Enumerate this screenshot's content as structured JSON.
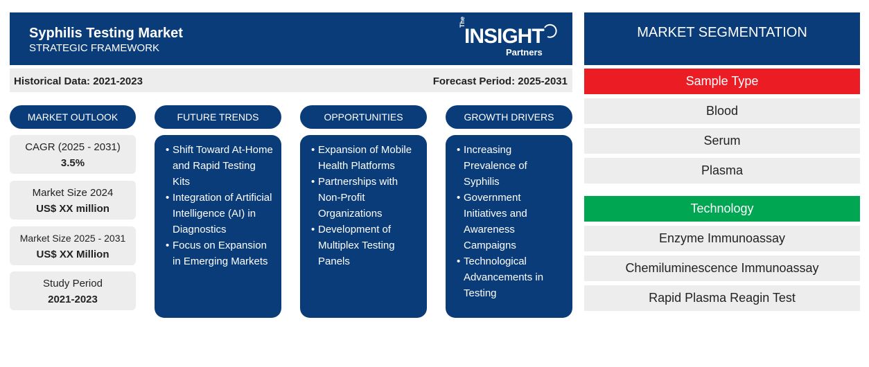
{
  "header": {
    "title": "Syphilis Testing Market",
    "subtitle": "STRATEGIC FRAMEWORK",
    "logo": {
      "the": "The",
      "insight": "INSIGHT",
      "partners": "Partners"
    }
  },
  "periods": {
    "historical": "Historical Data: 2021-2023",
    "forecast": "Forecast Period: 2025-2031"
  },
  "market_outlook": {
    "heading": "MARKET OUTLOOK",
    "stats": [
      {
        "label": "CAGR (2025 - 2031)",
        "value": "3.5%"
      },
      {
        "label": "Market Size 2024",
        "value": "US$ XX million"
      },
      {
        "label": "Market Size 2025 - 2031",
        "value": "US$ XX Million"
      },
      {
        "label": "Study Period",
        "value": "2021-2023"
      }
    ]
  },
  "future_trends": {
    "heading": "FUTURE TRENDS",
    "items": [
      "Shift Toward At-Home and Rapid Testing Kits",
      "Integration of Artificial Intelligence (AI) in Diagnostics",
      "Focus on Expansion in Emerging Markets"
    ]
  },
  "opportunities": {
    "heading": "OPPORTUNITIES",
    "items": [
      "Expansion of Mobile Health Platforms",
      "Partnerships with Non-Profit Organizations",
      "Development of Multiplex Testing Panels"
    ]
  },
  "growth_drivers": {
    "heading": "GROWTH DRIVERS",
    "items": [
      "Increasing Prevalence of Syphilis",
      "Government Initiatives and Awareness Campaigns",
      "Technological Advancements in Testing"
    ]
  },
  "segmentation": {
    "heading": "MARKET SEGMENTATION",
    "sample_type": {
      "label": "Sample Type",
      "color": "#ec1c24",
      "items": [
        "Blood",
        "Serum",
        "Plasma"
      ]
    },
    "technology": {
      "label": "Technology",
      "color": "#00a651",
      "items": [
        "Enzyme Immunoassay",
        "Chemiluminescence Immunoassay",
        "Rapid Plasma Reagin Test"
      ]
    }
  },
  "colors": {
    "navy": "#0a3c7a",
    "light_gray": "#ededed"
  }
}
